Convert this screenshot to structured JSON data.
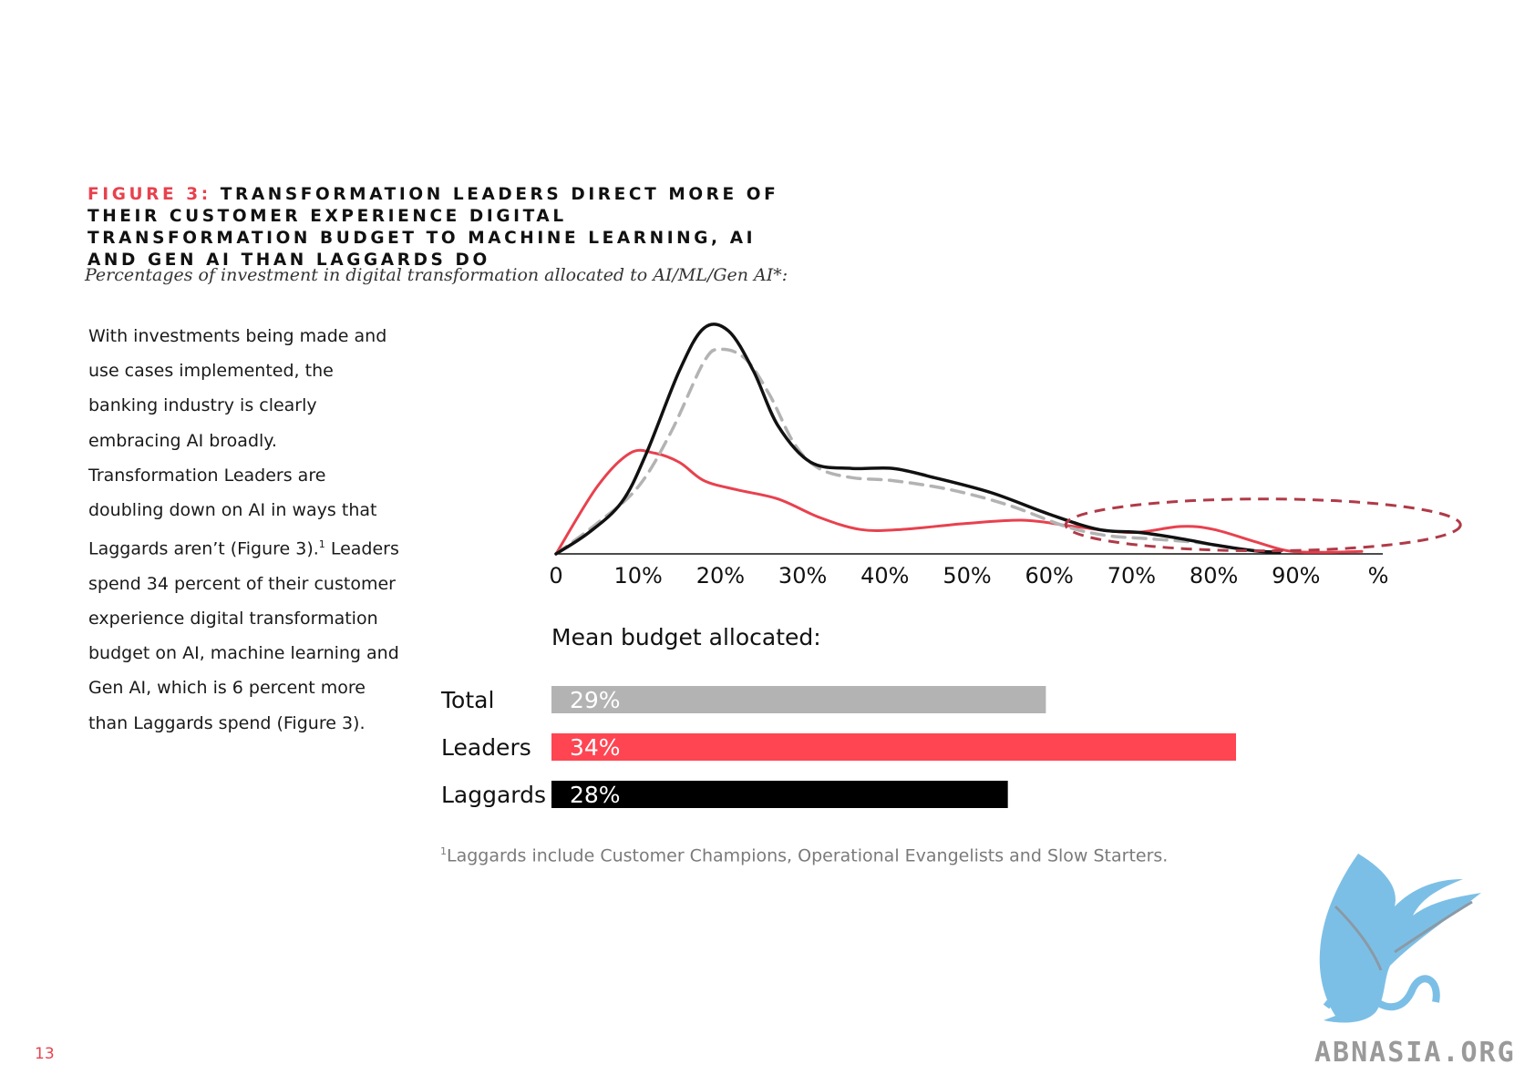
{
  "figure": {
    "label": "Figure 3:",
    "title": "Transformation Leaders direct more of their customer experience digital transformation budget to machine learning, AI and Gen AI than Laggards do",
    "subtitle": "Percentages of investment in digital transformation allocated to AI/ML/Gen AI*:"
  },
  "body_text": {
    "before_sup": "With investments being made and use cases implemented, the banking industry is clearly embracing AI broadly. Transformation Leaders are doubling down on AI in ways that Laggards aren’t (Figure 3).",
    "sup": "1",
    "after_sup": " Leaders spend 34 percent of their customer experience digital transformation budget on AI, machine learning and Gen AI, which is 6 percent more than Laggards spend (Figure 3)."
  },
  "chart_data": [
    {
      "type": "line",
      "x": [
        0,
        10,
        20,
        30,
        40,
        50,
        60,
        70,
        80,
        90,
        100
      ],
      "xtick_labels": [
        "0",
        "10%",
        "20%",
        "30%",
        "40%",
        "50%",
        "60%",
        "70%",
        "80%",
        "90%",
        "%"
      ],
      "xlim": [
        0,
        100
      ],
      "grid": false,
      "legend": "none",
      "series": [
        {
          "key": "leaders",
          "color": "#e8414e",
          "style": "solid",
          "points": [
            [
              0,
              0
            ],
            [
              5,
              22
            ],
            [
              9,
              33
            ],
            [
              12,
              33
            ],
            [
              15,
              30
            ],
            [
              18,
              24
            ],
            [
              22,
              21
            ],
            [
              27,
              18
            ],
            [
              32,
              12
            ],
            [
              37,
              8
            ],
            [
              42,
              8
            ],
            [
              50,
              10
            ],
            [
              57,
              11
            ],
            [
              63,
              9
            ],
            [
              70,
              7
            ],
            [
              76,
              9
            ],
            [
              80,
              8
            ],
            [
              85,
              4
            ],
            [
              89,
              1
            ],
            [
              93,
              0.5
            ],
            [
              98,
              0.8
            ]
          ]
        },
        {
          "key": "total",
          "color": "#b3b3b3",
          "style": "dashed",
          "points": [
            [
              0,
              0
            ],
            [
              5,
              10
            ],
            [
              10,
              22
            ],
            [
              14,
              40
            ],
            [
              18,
              63
            ],
            [
              20,
              67
            ],
            [
              23,
              64
            ],
            [
              26,
              52
            ],
            [
              29,
              36
            ],
            [
              32,
              28
            ],
            [
              36,
              25
            ],
            [
              41,
              24
            ],
            [
              48,
              21
            ],
            [
              55,
              16
            ],
            [
              62,
              9
            ],
            [
              67,
              6
            ],
            [
              72,
              5
            ],
            [
              77,
              4
            ],
            [
              80,
              3
            ]
          ]
        },
        {
          "key": "laggards",
          "color": "#111111",
          "style": "solid",
          "points": [
            [
              0,
              0
            ],
            [
              4,
              7
            ],
            [
              8,
              17
            ],
            [
              11,
              33
            ],
            [
              15,
              60
            ],
            [
              18,
              74
            ],
            [
              21,
              73
            ],
            [
              24,
              60
            ],
            [
              27,
              42
            ],
            [
              31,
              30
            ],
            [
              36,
              28
            ],
            [
              41,
              28
            ],
            [
              46,
              25
            ],
            [
              53,
              20
            ],
            [
              60,
              13
            ],
            [
              66,
              8
            ],
            [
              71,
              7
            ],
            [
              76,
              5
            ],
            [
              80,
              3
            ],
            [
              85,
              1
            ],
            [
              88,
              0.5
            ]
          ]
        }
      ],
      "highlight_ellipse": {
        "color": "#b03a48",
        "style": "dashed",
        "x_range": [
          62,
          110
        ],
        "y_range": [
          1,
          18
        ]
      }
    },
    {
      "type": "bar",
      "orientation": "horizontal",
      "title": "Mean budget allocated:",
      "categories": [
        "Total",
        "Leaders",
        "Laggards"
      ],
      "values": [
        29,
        34,
        28
      ],
      "value_labels": [
        "29%",
        "34%",
        "28%"
      ],
      "colors": [
        "#b3b3b3",
        "#ff4552",
        "#000000"
      ],
      "xlim": [
        16,
        42
      ]
    }
  ],
  "footnote": {
    "mark": "1",
    "text": "Laggards include Customer Champions, Operational Evangelists and Slow Starters."
  },
  "page_number": "13",
  "logo": {
    "icon": "griffin-logo-icon",
    "text": "ABNASIA.ORG",
    "color": "#7cbfe6"
  }
}
